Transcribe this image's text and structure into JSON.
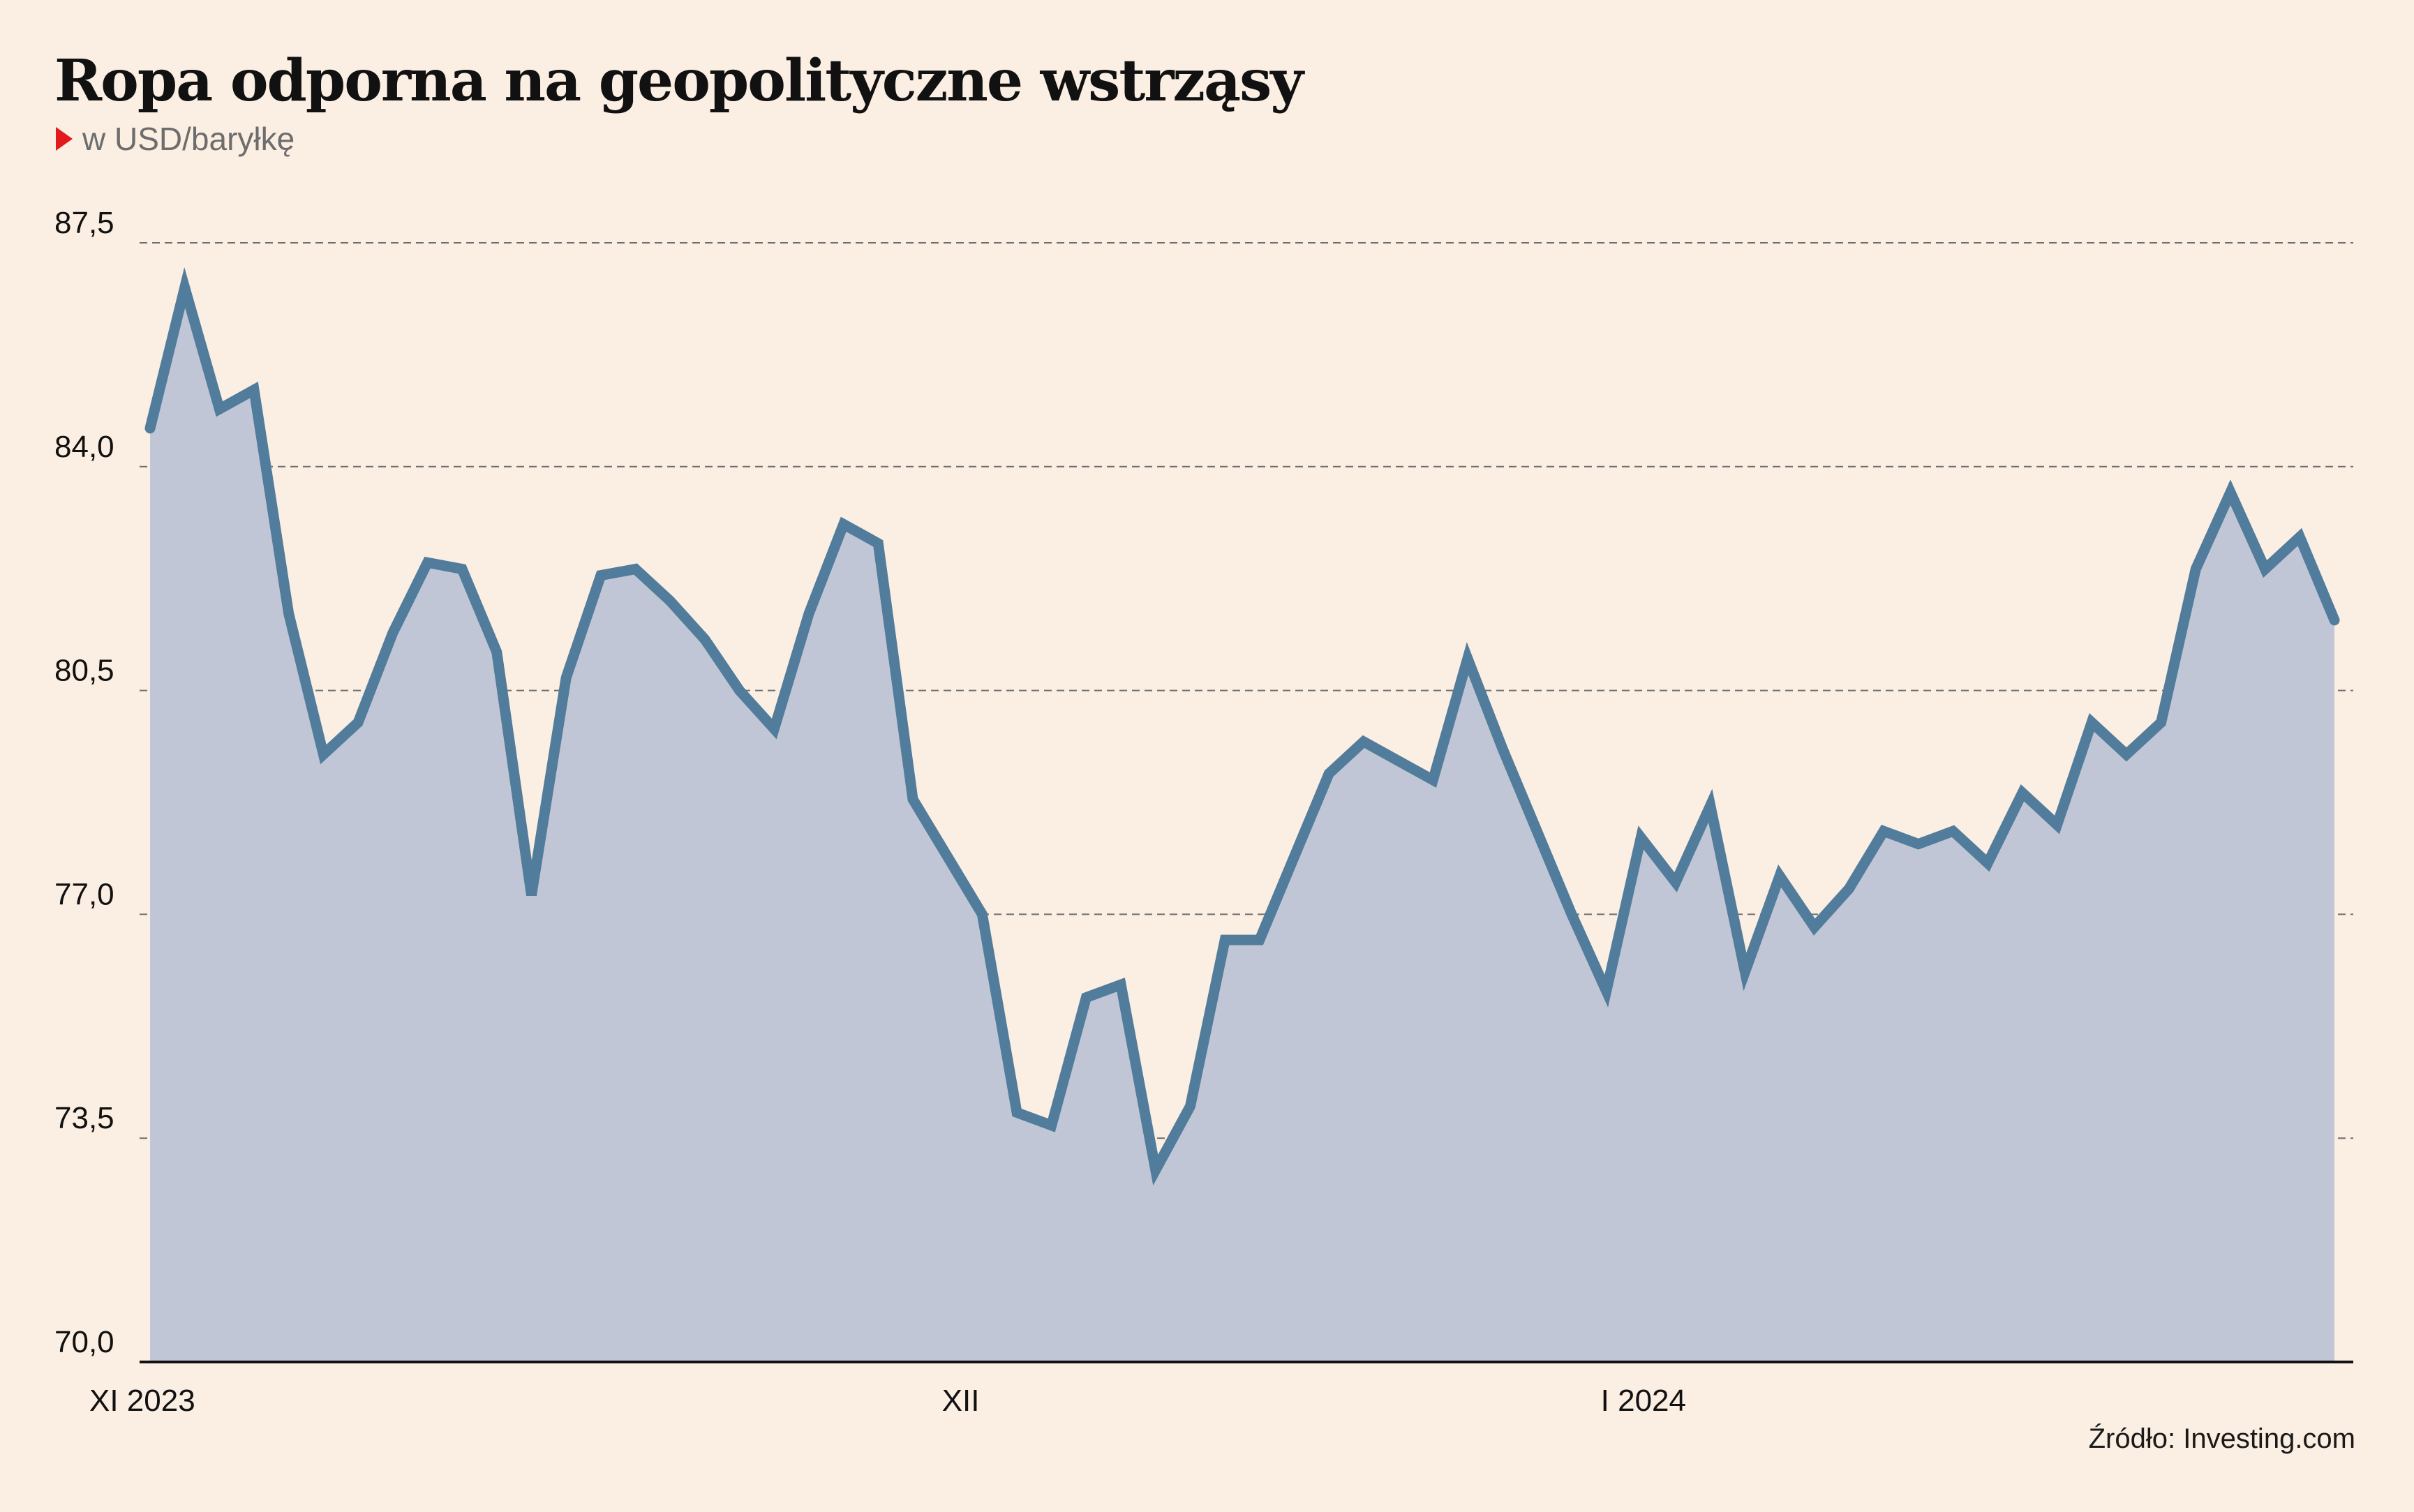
{
  "title": "Ropa odporna na geopolityczne wstrząsy",
  "subtitle": "w USD/baryłkę",
  "source": "Źródło: Investing.com",
  "colors": {
    "background": "#fbeee2",
    "line": "#517c9b",
    "area": "#c1c6d6",
    "marker": "#e3191b"
  },
  "chart_data": {
    "type": "area",
    "title": "Ropa odporna na geopolityczne wstrząsy",
    "subtitle": "w USD/baryłkę",
    "ylim": [
      70.0,
      87.5
    ],
    "yticks": [
      70.0,
      73.5,
      77.0,
      80.5,
      84.0,
      87.5
    ],
    "ytick_labels": [
      "70,0",
      "73,5",
      "77,0",
      "80,5",
      "84,0",
      "87,5"
    ],
    "grid": "horizontal dashed",
    "xtick_labels": [
      {
        "label": "XI 2023",
        "index": 0
      },
      {
        "label": "XII",
        "index": 23
      },
      {
        "label": "I 2024",
        "index": 42
      }
    ],
    "series": [
      {
        "values": [
          84.6,
          86.8,
          84.9,
          85.2,
          81.7,
          79.5,
          80.0,
          81.4,
          82.5,
          82.4,
          81.1,
          77.3,
          80.7,
          82.3,
          82.4,
          81.9,
          81.3,
          80.5,
          79.9,
          81.7,
          83.1,
          82.8,
          78.8,
          77.9,
          77.0,
          73.9,
          73.7,
          75.7,
          75.9,
          73.0,
          74.0,
          76.6,
          76.6,
          77.9,
          79.2,
          79.7,
          79.4,
          79.1,
          81.0,
          79.6,
          78.3,
          77.0,
          75.8,
          78.2,
          77.5,
          78.7,
          76.1,
          77.6,
          76.8,
          77.4,
          78.3,
          78.1,
          78.3,
          77.8,
          78.9,
          78.4,
          80.0,
          79.5,
          80.0,
          82.4,
          83.6,
          82.4,
          82.9,
          81.6
        ]
      }
    ]
  }
}
